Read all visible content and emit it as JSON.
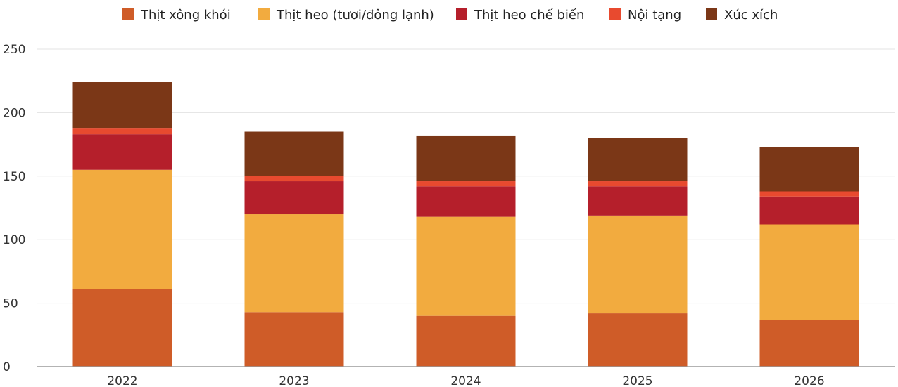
{
  "chart_data": {
    "type": "bar",
    "stacked": true,
    "title": "",
    "xlabel": "",
    "ylabel": "",
    "categories": [
      "2022",
      "2023",
      "2024",
      "2025",
      "2026"
    ],
    "ylim": [
      0,
      250
    ],
    "yticks": [
      0,
      50,
      100,
      150,
      200,
      250
    ],
    "grid": true,
    "legend_position": "top",
    "series": [
      {
        "name": "Thịt xông khói",
        "color": "#cf5c28",
        "values": [
          61,
          43,
          40,
          42,
          37
        ]
      },
      {
        "name": "Thịt heo (tươi/đông lạnh)",
        "color": "#f2ab3f",
        "values": [
          94,
          77,
          78,
          77,
          75
        ]
      },
      {
        "name": "Thịt heo chế biến",
        "color": "#b51f2b",
        "values": [
          28,
          26,
          24,
          23,
          22
        ]
      },
      {
        "name": "Nội tạng",
        "color": "#e84a2f",
        "values": [
          5,
          4,
          4,
          4,
          4
        ]
      },
      {
        "name": "Xúc xích",
        "color": "#7b3717",
        "values": [
          36,
          35,
          36,
          34,
          35
        ]
      }
    ]
  }
}
